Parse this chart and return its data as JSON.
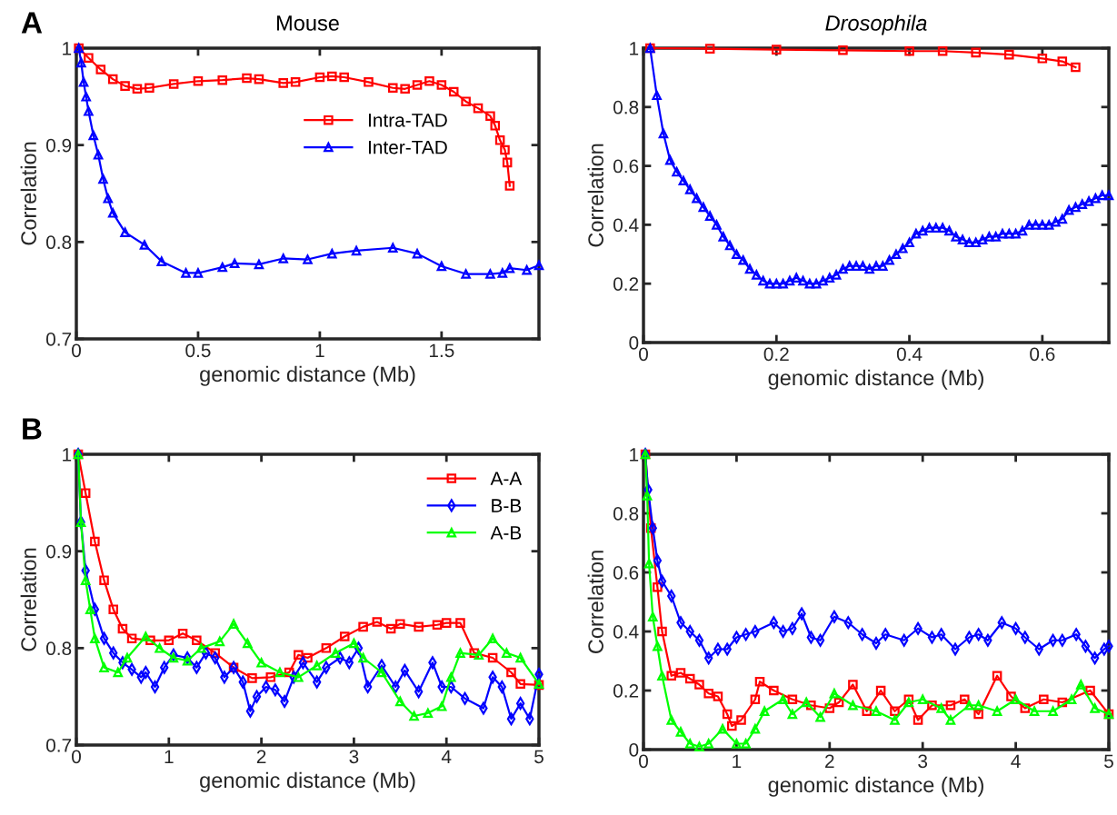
{
  "chart_data": [
    {
      "type": "line",
      "title": "Mouse",
      "xlabel": "genomic distance (Mb)",
      "ylabel": "Correlation",
      "annotations": [
        "A"
      ],
      "xlim": [
        0,
        1.9
      ],
      "ylim": [
        0.7,
        1
      ],
      "xticks": [
        0,
        0.5,
        1,
        1.5
      ],
      "yticks": [
        0.7,
        0.8,
        0.9,
        1
      ],
      "legend": "right",
      "grid": false,
      "series": [
        {
          "name": "Intra-TAD",
          "color": "#ff0000",
          "marker": "square",
          "x": [
            0.01,
            0.05,
            0.1,
            0.15,
            0.2,
            0.25,
            0.3,
            0.4,
            0.5,
            0.6,
            0.7,
            0.75,
            0.85,
            0.9,
            1.0,
            1.05,
            1.1,
            1.2,
            1.3,
            1.35,
            1.4,
            1.45,
            1.5,
            1.55,
            1.6,
            1.65,
            1.7,
            1.72,
            1.74,
            1.76,
            1.77,
            1.78
          ],
          "values": [
            1.0,
            0.99,
            0.978,
            0.968,
            0.961,
            0.958,
            0.959,
            0.963,
            0.966,
            0.967,
            0.969,
            0.968,
            0.964,
            0.965,
            0.97,
            0.971,
            0.97,
            0.965,
            0.959,
            0.958,
            0.962,
            0.966,
            0.962,
            0.955,
            0.945,
            0.938,
            0.93,
            0.92,
            0.905,
            0.895,
            0.882,
            0.858
          ]
        },
        {
          "name": "Inter-TAD",
          "color": "#0000ff",
          "marker": "triangle",
          "x": [
            0.01,
            0.02,
            0.03,
            0.04,
            0.05,
            0.07,
            0.09,
            0.11,
            0.13,
            0.15,
            0.2,
            0.28,
            0.35,
            0.45,
            0.5,
            0.6,
            0.65,
            0.75,
            0.85,
            0.95,
            1.05,
            1.15,
            1.3,
            1.4,
            1.5,
            1.6,
            1.7,
            1.75,
            1.78,
            1.85,
            1.9
          ],
          "values": [
            1.0,
            0.985,
            0.965,
            0.95,
            0.935,
            0.91,
            0.89,
            0.865,
            0.845,
            0.83,
            0.81,
            0.797,
            0.78,
            0.768,
            0.768,
            0.774,
            0.778,
            0.777,
            0.783,
            0.782,
            0.788,
            0.791,
            0.794,
            0.788,
            0.775,
            0.767,
            0.767,
            0.768,
            0.773,
            0.771,
            0.776
          ]
        }
      ]
    },
    {
      "type": "line",
      "title": "Drosophila",
      "xlabel": "genomic distance (Mb)",
      "ylabel": "Correlation",
      "xlim": [
        0,
        0.7
      ],
      "ylim": [
        0,
        1
      ],
      "xticks": [
        0,
        0.2,
        0.4,
        0.6
      ],
      "yticks": [
        0,
        0.2,
        0.4,
        0.6,
        0.8,
        1
      ],
      "legend": false,
      "grid": false,
      "series": [
        {
          "color": "#ff0000",
          "marker": "square",
          "x": [
            0.01,
            0.1,
            0.2,
            0.3,
            0.4,
            0.45,
            0.5,
            0.55,
            0.6,
            0.63,
            0.65
          ],
          "values": [
            1.0,
            0.998,
            0.995,
            0.993,
            0.99,
            0.99,
            0.985,
            0.978,
            0.965,
            0.955,
            0.935
          ]
        },
        {
          "color": "#0000ff",
          "marker": "triangle",
          "x": [
            0.01,
            0.02,
            0.03,
            0.04,
            0.05,
            0.06,
            0.07,
            0.08,
            0.09,
            0.1,
            0.11,
            0.12,
            0.13,
            0.14,
            0.15,
            0.16,
            0.17,
            0.18,
            0.19,
            0.2,
            0.21,
            0.22,
            0.23,
            0.24,
            0.25,
            0.26,
            0.27,
            0.28,
            0.29,
            0.3,
            0.31,
            0.32,
            0.33,
            0.34,
            0.35,
            0.36,
            0.37,
            0.38,
            0.39,
            0.4,
            0.41,
            0.42,
            0.43,
            0.44,
            0.45,
            0.46,
            0.47,
            0.48,
            0.49,
            0.5,
            0.51,
            0.52,
            0.53,
            0.54,
            0.55,
            0.56,
            0.57,
            0.58,
            0.59,
            0.6,
            0.61,
            0.62,
            0.63,
            0.64,
            0.65,
            0.66,
            0.67,
            0.68,
            0.69,
            0.7
          ],
          "values": [
            1.0,
            0.84,
            0.71,
            0.62,
            0.58,
            0.55,
            0.52,
            0.49,
            0.46,
            0.43,
            0.4,
            0.36,
            0.33,
            0.3,
            0.28,
            0.25,
            0.23,
            0.21,
            0.2,
            0.2,
            0.2,
            0.21,
            0.22,
            0.21,
            0.2,
            0.2,
            0.21,
            0.22,
            0.23,
            0.25,
            0.26,
            0.26,
            0.26,
            0.25,
            0.26,
            0.26,
            0.28,
            0.3,
            0.32,
            0.34,
            0.37,
            0.38,
            0.39,
            0.39,
            0.39,
            0.38,
            0.36,
            0.35,
            0.34,
            0.34,
            0.35,
            0.36,
            0.36,
            0.37,
            0.37,
            0.37,
            0.38,
            0.4,
            0.4,
            0.4,
            0.4,
            0.41,
            0.42,
            0.45,
            0.46,
            0.47,
            0.48,
            0.49,
            0.5,
            0.5
          ]
        }
      ]
    },
    {
      "type": "line",
      "xlabel": "genomic distance (Mb)",
      "ylabel": "Correlation",
      "annotations": [
        "B"
      ],
      "xlim": [
        0,
        5
      ],
      "ylim": [
        0.7,
        1
      ],
      "xticks": [
        0,
        1,
        2,
        3,
        4,
        5
      ],
      "yticks": [
        0.7,
        0.8,
        0.9,
        1
      ],
      "legend": "top right",
      "grid": false,
      "series": [
        {
          "name": "A-A",
          "color": "#ff0000",
          "marker": "square",
          "x": [
            0.02,
            0.1,
            0.2,
            0.3,
            0.4,
            0.5,
            0.6,
            0.8,
            1.0,
            1.15,
            1.3,
            1.5,
            1.7,
            1.9,
            2.1,
            2.3,
            2.4,
            2.5,
            2.7,
            2.9,
            3.1,
            3.25,
            3.4,
            3.5,
            3.7,
            3.9,
            4.0,
            4.15,
            4.3,
            4.5,
            4.7,
            4.8,
            5.0
          ],
          "values": [
            1.0,
            0.96,
            0.91,
            0.87,
            0.84,
            0.82,
            0.81,
            0.808,
            0.808,
            0.815,
            0.808,
            0.795,
            0.78,
            0.769,
            0.77,
            0.775,
            0.793,
            0.79,
            0.8,
            0.812,
            0.822,
            0.827,
            0.82,
            0.825,
            0.822,
            0.824,
            0.826,
            0.826,
            0.795,
            0.79,
            0.775,
            0.763,
            0.762
          ]
        },
        {
          "name": "B-B",
          "color": "#0000ff",
          "marker": "diamond",
          "x": [
            0.02,
            0.05,
            0.1,
            0.2,
            0.3,
            0.4,
            0.5,
            0.6,
            0.7,
            0.75,
            0.85,
            0.95,
            1.05,
            1.2,
            1.3,
            1.4,
            1.5,
            1.6,
            1.7,
            1.8,
            1.88,
            1.95,
            2.05,
            2.15,
            2.25,
            2.35,
            2.45,
            2.6,
            2.7,
            2.85,
            2.95,
            3.05,
            3.15,
            3.3,
            3.45,
            3.55,
            3.7,
            3.85,
            3.95,
            4.05,
            4.2,
            4.4,
            4.5,
            4.6,
            4.7,
            4.8,
            4.9,
            5.0
          ],
          "values": [
            1.0,
            0.93,
            0.88,
            0.84,
            0.81,
            0.795,
            0.785,
            0.778,
            0.77,
            0.775,
            0.76,
            0.78,
            0.793,
            0.79,
            0.78,
            0.795,
            0.79,
            0.77,
            0.78,
            0.765,
            0.735,
            0.75,
            0.76,
            0.757,
            0.745,
            0.77,
            0.785,
            0.765,
            0.78,
            0.79,
            0.785,
            0.8,
            0.76,
            0.782,
            0.76,
            0.777,
            0.755,
            0.785,
            0.76,
            0.76,
            0.748,
            0.738,
            0.77,
            0.76,
            0.727,
            0.743,
            0.727,
            0.773
          ]
        },
        {
          "name": "A-B",
          "color": "#00ff00",
          "marker": "triangle",
          "x": [
            0.02,
            0.05,
            0.1,
            0.15,
            0.2,
            0.3,
            0.45,
            0.55,
            0.75,
            0.9,
            1.05,
            1.2,
            1.35,
            1.55,
            1.7,
            1.85,
            2.0,
            2.2,
            2.4,
            2.6,
            2.8,
            3.0,
            3.1,
            3.3,
            3.5,
            3.65,
            3.8,
            3.95,
            4.05,
            4.15,
            4.35,
            4.5,
            4.65,
            4.8,
            5.0
          ],
          "values": [
            1.0,
            0.93,
            0.87,
            0.84,
            0.81,
            0.78,
            0.775,
            0.79,
            0.812,
            0.8,
            0.79,
            0.787,
            0.8,
            0.807,
            0.825,
            0.805,
            0.785,
            0.775,
            0.77,
            0.782,
            0.795,
            0.805,
            0.79,
            0.775,
            0.745,
            0.73,
            0.733,
            0.74,
            0.77,
            0.795,
            0.793,
            0.81,
            0.795,
            0.79,
            0.763
          ]
        }
      ]
    },
    {
      "type": "line",
      "xlabel": "genomic distance (Mb)",
      "ylabel": "Correlation",
      "xlim": [
        0,
        5
      ],
      "ylim": [
        0,
        1
      ],
      "xticks": [
        0,
        1,
        2,
        3,
        4,
        5
      ],
      "yticks": [
        0,
        0.2,
        0.4,
        0.6,
        0.8,
        1
      ],
      "legend": false,
      "grid": false,
      "series": [
        {
          "color": "#ff0000",
          "marker": "square",
          "x": [
            0.02,
            0.08,
            0.15,
            0.2,
            0.3,
            0.4,
            0.5,
            0.6,
            0.7,
            0.8,
            0.9,
            0.95,
            1.05,
            1.2,
            1.25,
            1.4,
            1.6,
            1.8,
            2.0,
            2.1,
            2.25,
            2.4,
            2.55,
            2.7,
            2.85,
            2.95,
            3.1,
            3.3,
            3.45,
            3.6,
            3.8,
            3.95,
            4.1,
            4.3,
            4.5,
            4.8,
            5.0
          ],
          "values": [
            1.0,
            0.75,
            0.55,
            0.4,
            0.25,
            0.26,
            0.24,
            0.22,
            0.19,
            0.18,
            0.12,
            0.08,
            0.1,
            0.17,
            0.23,
            0.2,
            0.17,
            0.15,
            0.14,
            0.16,
            0.22,
            0.13,
            0.2,
            0.13,
            0.17,
            0.1,
            0.15,
            0.15,
            0.17,
            0.12,
            0.25,
            0.18,
            0.14,
            0.17,
            0.16,
            0.2,
            0.12
          ]
        },
        {
          "color": "#0000ff",
          "marker": "diamond",
          "x": [
            0.02,
            0.05,
            0.1,
            0.15,
            0.2,
            0.3,
            0.4,
            0.5,
            0.6,
            0.7,
            0.8,
            0.9,
            1.0,
            1.1,
            1.2,
            1.4,
            1.5,
            1.6,
            1.7,
            1.8,
            1.9,
            2.05,
            2.2,
            2.35,
            2.5,
            2.6,
            2.8,
            2.95,
            3.1,
            3.2,
            3.35,
            3.5,
            3.6,
            3.7,
            3.85,
            4.0,
            4.1,
            4.25,
            4.4,
            4.5,
            4.65,
            4.75,
            4.85,
            4.95,
            5.0
          ],
          "values": [
            1.0,
            0.88,
            0.75,
            0.64,
            0.57,
            0.52,
            0.43,
            0.4,
            0.37,
            0.31,
            0.34,
            0.34,
            0.38,
            0.39,
            0.4,
            0.43,
            0.4,
            0.41,
            0.46,
            0.38,
            0.37,
            0.45,
            0.43,
            0.39,
            0.36,
            0.39,
            0.37,
            0.41,
            0.38,
            0.39,
            0.34,
            0.38,
            0.39,
            0.37,
            0.43,
            0.41,
            0.38,
            0.34,
            0.37,
            0.37,
            0.39,
            0.35,
            0.31,
            0.34,
            0.35
          ]
        },
        {
          "color": "#00ff00",
          "marker": "triangle",
          "x": [
            0.02,
            0.04,
            0.06,
            0.1,
            0.15,
            0.2,
            0.3,
            0.4,
            0.5,
            0.6,
            0.7,
            0.85,
            1.0,
            1.1,
            1.2,
            1.3,
            1.5,
            1.6,
            1.75,
            1.9,
            2.05,
            2.25,
            2.5,
            2.7,
            2.85,
            3.0,
            3.2,
            3.3,
            3.5,
            3.6,
            3.8,
            4.0,
            4.2,
            4.4,
            4.6,
            4.7,
            4.85,
            5.0
          ],
          "values": [
            1.0,
            0.86,
            0.63,
            0.45,
            0.35,
            0.25,
            0.1,
            0.06,
            0.02,
            0.01,
            0.02,
            0.07,
            0.02,
            0.02,
            0.07,
            0.13,
            0.17,
            0.12,
            0.16,
            0.11,
            0.19,
            0.15,
            0.13,
            0.1,
            0.16,
            0.17,
            0.14,
            0.1,
            0.15,
            0.15,
            0.13,
            0.17,
            0.13,
            0.13,
            0.17,
            0.22,
            0.14,
            0.12
          ]
        }
      ]
    }
  ]
}
